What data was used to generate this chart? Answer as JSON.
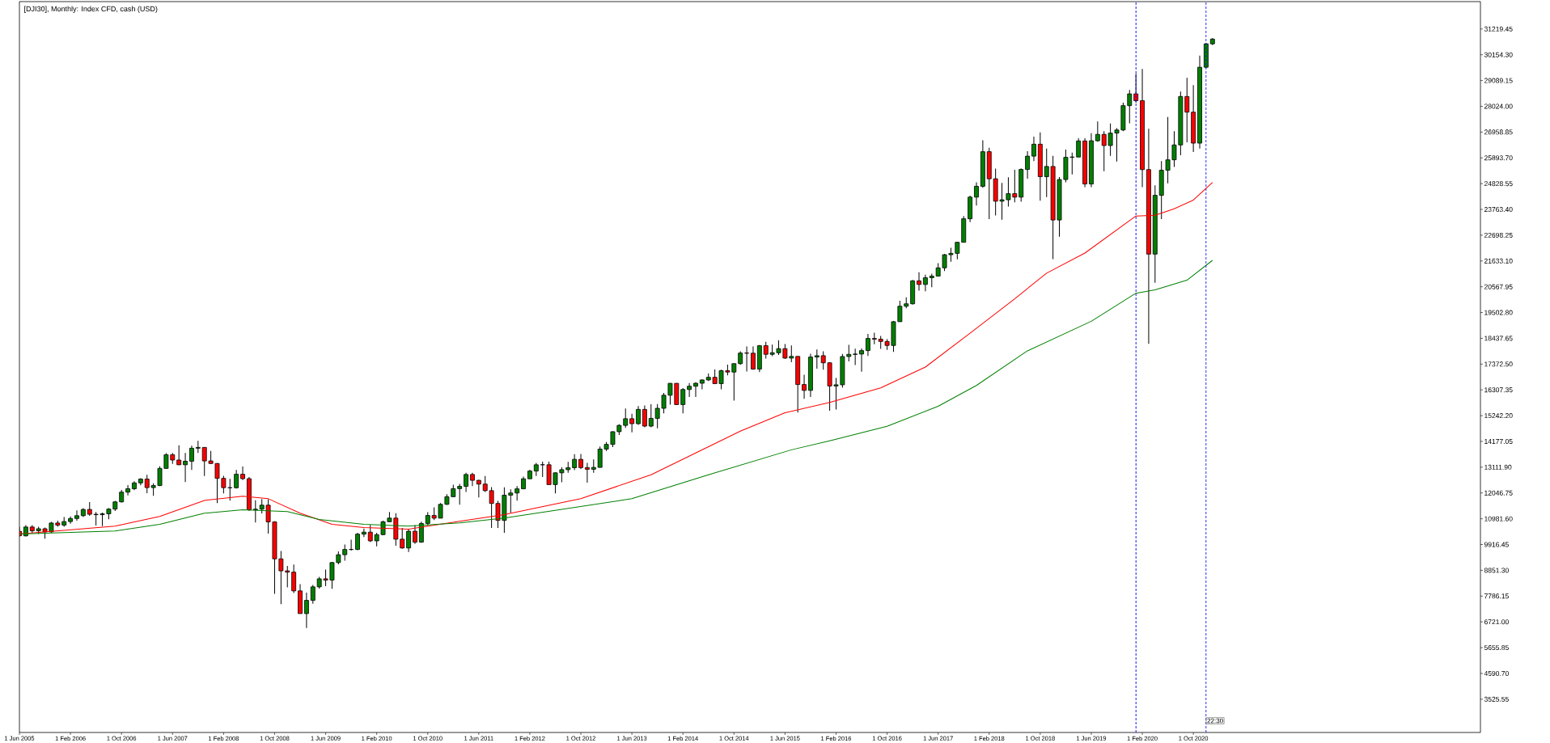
{
  "chart_data": {
    "type": "candlestick",
    "title": "[DJI30], Monthly:  Index CFD, cash (USD)",
    "x": [
      "2005-06",
      "2005-07",
      "2005-08",
      "2005-09",
      "2005-10",
      "2005-11",
      "2005-12",
      "2006-01",
      "2006-02",
      "2006-03",
      "2006-04",
      "2006-05",
      "2006-06",
      "2006-07",
      "2006-08",
      "2006-09",
      "2006-10",
      "2006-11",
      "2006-12",
      "2007-01",
      "2007-02",
      "2007-03",
      "2007-04",
      "2007-05",
      "2007-06",
      "2007-07",
      "2007-08",
      "2007-09",
      "2007-10",
      "2007-11",
      "2007-12",
      "2008-01",
      "2008-02",
      "2008-03",
      "2008-04",
      "2008-05",
      "2008-06",
      "2008-07",
      "2008-08",
      "2008-09",
      "2008-10",
      "2008-11",
      "2008-12",
      "2009-01",
      "2009-02",
      "2009-03",
      "2009-04",
      "2009-05",
      "2009-06",
      "2009-07",
      "2009-08",
      "2009-09",
      "2009-10",
      "2009-11",
      "2009-12",
      "2010-01",
      "2010-02",
      "2010-03",
      "2010-04",
      "2010-05",
      "2010-06",
      "2010-07",
      "2010-08",
      "2010-09",
      "2010-10",
      "2010-11",
      "2010-12",
      "2011-01",
      "2011-02",
      "2011-03",
      "2011-04",
      "2011-05",
      "2011-06",
      "2011-07",
      "2011-08",
      "2011-09",
      "2011-10",
      "2011-11",
      "2011-12",
      "2012-01",
      "2012-02",
      "2012-03",
      "2012-04",
      "2012-05",
      "2012-06",
      "2012-07",
      "2012-08",
      "2012-09",
      "2012-10",
      "2012-11",
      "2012-12",
      "2013-01",
      "2013-02",
      "2013-03",
      "2013-04",
      "2013-05",
      "2013-06",
      "2013-07",
      "2013-08",
      "2013-09",
      "2013-10",
      "2013-11",
      "2013-12",
      "2014-01",
      "2014-02",
      "2014-03",
      "2014-04",
      "2014-05",
      "2014-06",
      "2014-07",
      "2014-08",
      "2014-09",
      "2014-10",
      "2014-11",
      "2014-12",
      "2015-01",
      "2015-02",
      "2015-03",
      "2015-04",
      "2015-05",
      "2015-06",
      "2015-07",
      "2015-08",
      "2015-09",
      "2015-10",
      "2015-11",
      "2015-12",
      "2016-01",
      "2016-02",
      "2016-03",
      "2016-04",
      "2016-05",
      "2016-06",
      "2016-07",
      "2016-08",
      "2016-09",
      "2016-10",
      "2016-11",
      "2016-12",
      "2017-01",
      "2017-02",
      "2017-03",
      "2017-04",
      "2017-05",
      "2017-06",
      "2017-07",
      "2017-08",
      "2017-09",
      "2017-10",
      "2017-11",
      "2017-12",
      "2018-01",
      "2018-02",
      "2018-03",
      "2018-04",
      "2018-05",
      "2018-06",
      "2018-07",
      "2018-08",
      "2018-09",
      "2018-10",
      "2018-11",
      "2018-12",
      "2019-01",
      "2019-02",
      "2019-03",
      "2019-04",
      "2019-05",
      "2019-06",
      "2019-07",
      "2019-08",
      "2019-09",
      "2019-10",
      "2019-11",
      "2019-12",
      "2020-01",
      "2020-02",
      "2020-03",
      "2020-04",
      "2020-05",
      "2020-06",
      "2020-07",
      "2020-08",
      "2020-09",
      "2020-10",
      "2020-11",
      "2020-12",
      "2021-01"
    ],
    "ohlc": [
      [
        10467,
        10640,
        10250,
        10275
      ],
      [
        10275,
        10720,
        10250,
        10641
      ],
      [
        10641,
        10720,
        10400,
        10482
      ],
      [
        10482,
        10650,
        10350,
        10569
      ],
      [
        10569,
        10620,
        10160,
        10440
      ],
      [
        10440,
        10850,
        10400,
        10806
      ],
      [
        10806,
        10900,
        10650,
        10718
      ],
      [
        10718,
        11050,
        10650,
        10865
      ],
      [
        10865,
        11080,
        10780,
        10993
      ],
      [
        10993,
        11330,
        10900,
        11109
      ],
      [
        11109,
        11420,
        11050,
        11367
      ],
      [
        11367,
        11670,
        11100,
        11168
      ],
      [
        11168,
        11260,
        10700,
        11150
      ],
      [
        11150,
        11240,
        10680,
        11186
      ],
      [
        11186,
        11420,
        10960,
        11381
      ],
      [
        11381,
        11720,
        11300,
        11679
      ],
      [
        11679,
        12170,
        11650,
        12081
      ],
      [
        12081,
        12370,
        11950,
        12222
      ],
      [
        12222,
        12530,
        12160,
        12463
      ],
      [
        12463,
        12660,
        12360,
        12622
      ],
      [
        12622,
        12800,
        12040,
        12269
      ],
      [
        12269,
        12450,
        11930,
        12354
      ],
      [
        12354,
        13150,
        12330,
        13063
      ],
      [
        13063,
        13690,
        13050,
        13628
      ],
      [
        13628,
        13700,
        13250,
        13409
      ],
      [
        13409,
        14020,
        13200,
        13212
      ],
      [
        13212,
        13700,
        12500,
        13358
      ],
      [
        13358,
        14000,
        13000,
        13896
      ],
      [
        13896,
        14200,
        13700,
        13930
      ],
      [
        13930,
        13930,
        12750,
        13372
      ],
      [
        13372,
        13780,
        13250,
        13265
      ],
      [
        13265,
        13280,
        11630,
        12650
      ],
      [
        12650,
        12760,
        12030,
        12266
      ],
      [
        12266,
        12630,
        11730,
        12263
      ],
      [
        12263,
        13000,
        12230,
        12820
      ],
      [
        12820,
        13140,
        12580,
        12638
      ],
      [
        12638,
        12710,
        11300,
        11350
      ],
      [
        11350,
        11750,
        10830,
        11378
      ],
      [
        11378,
        11800,
        11200,
        11544
      ],
      [
        11544,
        11790,
        10370,
        10851
      ],
      [
        10851,
        10880,
        7880,
        9325
      ],
      [
        9325,
        9650,
        7450,
        8829
      ],
      [
        8829,
        9030,
        8150,
        8776
      ],
      [
        8776,
        9090,
        7910,
        8001
      ],
      [
        8001,
        8280,
        7060,
        7063
      ],
      [
        7063,
        7930,
        6470,
        7609
      ],
      [
        7609,
        8250,
        7470,
        8168
      ],
      [
        8168,
        8580,
        8100,
        8500
      ],
      [
        8500,
        8880,
        8200,
        8447
      ],
      [
        8447,
        9200,
        8090,
        9172
      ],
      [
        9172,
        9630,
        9100,
        9496
      ],
      [
        9496,
        9920,
        9250,
        9712
      ],
      [
        9712,
        10120,
        9670,
        9713
      ],
      [
        9713,
        10400,
        9680,
        10345
      ],
      [
        10345,
        10580,
        10230,
        10428
      ],
      [
        10428,
        10730,
        10020,
        10067
      ],
      [
        10067,
        10400,
        9840,
        10325
      ],
      [
        10325,
        10900,
        10300,
        10857
      ],
      [
        10857,
        11260,
        10850,
        11009
      ],
      [
        11009,
        11210,
        9870,
        10137
      ],
      [
        10137,
        10600,
        9740,
        9774
      ],
      [
        9774,
        10570,
        9610,
        10466
      ],
      [
        10466,
        10720,
        9940,
        10015
      ],
      [
        10015,
        10860,
        9990,
        10788
      ],
      [
        10788,
        11250,
        10700,
        11118
      ],
      [
        11118,
        11450,
        10930,
        11006
      ],
      [
        11006,
        11630,
        11000,
        11578
      ],
      [
        11578,
        12000,
        11550,
        11892
      ],
      [
        11892,
        12390,
        11880,
        12226
      ],
      [
        12226,
        12420,
        11560,
        12320
      ],
      [
        12320,
        12880,
        12090,
        12811
      ],
      [
        12811,
        12880,
        12330,
        12570
      ],
      [
        12570,
        12590,
        11860,
        12414
      ],
      [
        12414,
        12750,
        12090,
        12143
      ],
      [
        12143,
        12290,
        10600,
        11614
      ],
      [
        11614,
        11720,
        10600,
        10913
      ],
      [
        10913,
        12280,
        10400,
        11955
      ],
      [
        11955,
        12200,
        11230,
        12046
      ],
      [
        12046,
        12330,
        11730,
        12218
      ],
      [
        12218,
        12720,
        12210,
        12633
      ],
      [
        12633,
        13010,
        12630,
        12952
      ],
      [
        12952,
        13290,
        12750,
        13212
      ],
      [
        13212,
        13340,
        12710,
        13214
      ],
      [
        13214,
        13340,
        12390,
        12393
      ],
      [
        12393,
        12900,
        12030,
        12880
      ],
      [
        12880,
        13110,
        12490,
        13009
      ],
      [
        13009,
        13330,
        12880,
        13091
      ],
      [
        13091,
        13650,
        12990,
        13437
      ],
      [
        13437,
        13660,
        13030,
        13096
      ],
      [
        13096,
        13290,
        12470,
        13026
      ],
      [
        13026,
        13430,
        12880,
        13104
      ],
      [
        13104,
        13970,
        13100,
        13861
      ],
      [
        13861,
        14150,
        13780,
        14054
      ],
      [
        14054,
        14590,
        13940,
        14579
      ],
      [
        14579,
        14890,
        14440,
        14840
      ],
      [
        14840,
        15540,
        14740,
        15116
      ],
      [
        15116,
        15320,
        14550,
        14910
      ],
      [
        14910,
        15640,
        14860,
        15500
      ],
      [
        15500,
        15660,
        14760,
        14810
      ],
      [
        14810,
        15710,
        14760,
        15130
      ],
      [
        15130,
        15720,
        14720,
        15546
      ],
      [
        15546,
        16180,
        15340,
        16086
      ],
      [
        16086,
        16590,
        15700,
        16577
      ],
      [
        16577,
        16590,
        15690,
        15699
      ],
      [
        15699,
        16380,
        15340,
        16322
      ],
      [
        16322,
        16590,
        16010,
        16458
      ],
      [
        16458,
        16620,
        16010,
        16581
      ],
      [
        16581,
        16740,
        16330,
        16717
      ],
      [
        16717,
        16980,
        16670,
        16827
      ],
      [
        16827,
        17150,
        16560,
        16563
      ],
      [
        16563,
        17140,
        16330,
        17098
      ],
      [
        17098,
        17350,
        16910,
        17043
      ],
      [
        17043,
        17400,
        15860,
        17391
      ],
      [
        17391,
        17900,
        17340,
        17828
      ],
      [
        17828,
        18100,
        17070,
        17823
      ],
      [
        17823,
        18100,
        17140,
        17165
      ],
      [
        17165,
        18160,
        17040,
        18133
      ],
      [
        18133,
        18290,
        17600,
        17776
      ],
      [
        17776,
        18180,
        17700,
        17841
      ],
      [
        17841,
        18350,
        17750,
        18011
      ],
      [
        18011,
        18200,
        17580,
        17620
      ],
      [
        17620,
        18140,
        17450,
        17690
      ],
      [
        17690,
        17700,
        15370,
        16528
      ],
      [
        16528,
        16930,
        15940,
        16285
      ],
      [
        16285,
        17800,
        16010,
        17664
      ],
      [
        17664,
        17980,
        17180,
        17720
      ],
      [
        17720,
        17900,
        17140,
        17425
      ],
      [
        17425,
        17450,
        15450,
        16466
      ],
      [
        16466,
        16800,
        15500,
        16517
      ],
      [
        16517,
        17790,
        16400,
        17685
      ],
      [
        17685,
        18170,
        17480,
        17774
      ],
      [
        17774,
        18010,
        17330,
        17787
      ],
      [
        17787,
        18020,
        17060,
        17930
      ],
      [
        17930,
        18620,
        17710,
        18432
      ],
      [
        18432,
        18670,
        18190,
        18401
      ],
      [
        18401,
        18540,
        18000,
        18308
      ],
      [
        18308,
        18400,
        17960,
        18142
      ],
      [
        18142,
        19150,
        17880,
        19124
      ],
      [
        19124,
        19990,
        19120,
        19763
      ],
      [
        19763,
        20130,
        19680,
        19864
      ],
      [
        19864,
        20850,
        19830,
        20812
      ],
      [
        20812,
        21170,
        20410,
        20663
      ],
      [
        20663,
        21070,
        20380,
        20941
      ],
      [
        20941,
        21110,
        20550,
        21009
      ],
      [
        21009,
        21540,
        20990,
        21350
      ],
      [
        21350,
        21930,
        21220,
        21891
      ],
      [
        21891,
        22180,
        21600,
        21948
      ],
      [
        21948,
        22420,
        21700,
        22405
      ],
      [
        22405,
        23490,
        22400,
        23377
      ],
      [
        23377,
        24330,
        23240,
        24272
      ],
      [
        24272,
        24880,
        23920,
        24719
      ],
      [
        24719,
        26620,
        24660,
        26149
      ],
      [
        26149,
        26310,
        23360,
        25029
      ],
      [
        25029,
        25450,
        23510,
        24103
      ],
      [
        24103,
        24860,
        23340,
        24163
      ],
      [
        24163,
        25090,
        23880,
        24416
      ],
      [
        24416,
        25400,
        24060,
        24271
      ],
      [
        24271,
        25460,
        24080,
        25415
      ],
      [
        25415,
        26170,
        25030,
        25965
      ],
      [
        25965,
        26770,
        25760,
        26458
      ],
      [
        26458,
        26950,
        24120,
        25116
      ],
      [
        25116,
        26280,
        24270,
        25538
      ],
      [
        25538,
        25980,
        21710,
        23327
      ],
      [
        23327,
        25100,
        22640,
        24999
      ],
      [
        24999,
        26240,
        24880,
        25916
      ],
      [
        25916,
        26110,
        25210,
        25929
      ],
      [
        25929,
        26700,
        25920,
        26593
      ],
      [
        26593,
        26700,
        24680,
        24815
      ],
      [
        24815,
        26910,
        24680,
        26600
      ],
      [
        26600,
        27400,
        26560,
        26864
      ],
      [
        26864,
        27000,
        25340,
        26403
      ],
      [
        26403,
        27310,
        25980,
        26917
      ],
      [
        26917,
        27120,
        25740,
        27046
      ],
      [
        27046,
        28170,
        27000,
        28051
      ],
      [
        28051,
        28700,
        27320,
        28538
      ],
      [
        28538,
        29370,
        28170,
        28256
      ],
      [
        28256,
        29570,
        24680,
        25409
      ],
      [
        25409,
        27100,
        18210,
        21917
      ],
      [
        21917,
        24760,
        20730,
        24346
      ],
      [
        24346,
        25760,
        23360,
        25383
      ],
      [
        25383,
        27580,
        24840,
        25813
      ],
      [
        25813,
        27000,
        25520,
        26428
      ],
      [
        26428,
        28630,
        26000,
        28430
      ],
      [
        28430,
        29200,
        26540,
        27782
      ],
      [
        27782,
        28900,
        26140,
        26502
      ],
      [
        26502,
        30120,
        26280,
        29638
      ],
      [
        29638,
        30640,
        29600,
        30606
      ],
      [
        30606,
        30850,
        30550,
        30800
      ]
    ],
    "colors": [
      "#ff0000",
      "#008000",
      "#ff0000",
      "#008000",
      "#ff0000",
      "#008000",
      "#ff0000",
      "#008000",
      "#008000",
      "#008000",
      "#008000",
      "#ff0000",
      "#ff0000",
      "#008000",
      "#008000",
      "#008000",
      "#008000",
      "#008000",
      "#008000",
      "#008000",
      "#ff0000",
      "#008000",
      "#008000",
      "#008000",
      "#ff0000",
      "#ff0000",
      "#008000",
      "#008000",
      "#008000",
      "#ff0000",
      "#ff0000",
      "#ff0000",
      "#ff0000",
      "#ff0000",
      "#008000",
      "#ff0000",
      "#ff0000",
      "#008000",
      "#008000",
      "#ff0000",
      "#ff0000",
      "#ff0000",
      "#ff0000",
      "#ff0000",
      "#ff0000",
      "#008000",
      "#008000",
      "#008000",
      "#ff0000",
      "#008000",
      "#008000",
      "#008000",
      "#008000",
      "#008000",
      "#008000",
      "#ff0000",
      "#008000",
      "#008000",
      "#008000",
      "#ff0000",
      "#ff0000",
      "#008000",
      "#ff0000",
      "#008000",
      "#008000",
      "#ff0000",
      "#008000",
      "#008000",
      "#008000",
      "#008000",
      "#008000",
      "#ff0000",
      "#ff0000",
      "#ff0000",
      "#ff0000",
      "#ff0000",
      "#008000",
      "#008000",
      "#008000",
      "#008000",
      "#008000",
      "#008000",
      "#008000",
      "#ff0000",
      "#008000",
      "#008000",
      "#008000",
      "#008000",
      "#ff0000",
      "#ff0000",
      "#008000",
      "#008000",
      "#008000",
      "#008000",
      "#008000",
      "#008000",
      "#ff0000",
      "#008000",
      "#ff0000",
      "#008000",
      "#008000",
      "#008000",
      "#008000",
      "#ff0000",
      "#008000",
      "#008000",
      "#008000",
      "#008000",
      "#008000",
      "#ff0000",
      "#008000",
      "#ff0000",
      "#008000",
      "#008000",
      "#ff0000",
      "#ff0000",
      "#008000",
      "#ff0000",
      "#008000",
      "#008000",
      "#ff0000",
      "#008000",
      "#ff0000",
      "#ff0000",
      "#008000",
      "#008000",
      "#ff0000",
      "#ff0000",
      "#008000",
      "#008000",
      "#008000",
      "#008000",
      "#008000",
      "#008000",
      "#ff0000",
      "#ff0000",
      "#ff0000",
      "#008000",
      "#008000",
      "#008000",
      "#008000",
      "#ff0000",
      "#008000",
      "#008000",
      "#008000",
      "#008000",
      "#008000",
      "#008000",
      "#008000",
      "#008000",
      "#008000",
      "#008000",
      "#ff0000",
      "#ff0000",
      "#008000",
      "#008000",
      "#ff0000",
      "#008000",
      "#008000",
      "#008000",
      "#ff0000",
      "#008000",
      "#ff0000",
      "#008000",
      "#008000",
      "#008000",
      "#008000",
      "#ff0000",
      "#008000",
      "#008000",
      "#ff0000",
      "#008000",
      "#008000",
      "#008000",
      "#008000",
      "#ff0000",
      "#ff0000",
      "#ff0000",
      "#008000",
      "#008000",
      "#008000",
      "#008000",
      "#008000",
      "#ff0000",
      "#ff0000",
      "#008000",
      "#008000",
      "#008000"
    ],
    "series": [
      {
        "type": "line",
        "color": "#ff0000",
        "x": [
          "2005-06",
          "2006-09",
          "2007-04",
          "2007-11",
          "2008-05",
          "2008-09",
          "2009-02",
          "2009-07",
          "2009-12",
          "2010-07",
          "2011-03",
          "2011-10",
          "2012-10",
          "2013-09",
          "2014-11",
          "2015-06",
          "2016-01",
          "2016-09",
          "2017-04",
          "2017-11",
          "2018-06",
          "2018-11",
          "2019-05",
          "2020-01",
          "2020-04",
          "2020-07",
          "2020-10",
          "2021-01"
        ],
        "values": [
          10350,
          10680,
          11080,
          11740,
          11910,
          11810,
          11210,
          10750,
          10620,
          10550,
          10880,
          11150,
          11810,
          12800,
          14600,
          15360,
          15790,
          16390,
          17250,
          18650,
          20070,
          21130,
          21960,
          23490,
          23520,
          23790,
          24150,
          24880
        ]
      },
      {
        "type": "line",
        "color": "#008000",
        "x": [
          "2005-06",
          "2006-09",
          "2007-04",
          "2007-11",
          "2008-05",
          "2008-12",
          "2009-05",
          "2009-12",
          "2010-07",
          "2011-03",
          "2011-10",
          "2013-06",
          "2014-06",
          "2015-07",
          "2016-01",
          "2016-10",
          "2017-06",
          "2017-12",
          "2018-08",
          "2019-06",
          "2020-01",
          "2020-04",
          "2020-09",
          "2021-01"
        ],
        "values": [
          10350,
          10480,
          10750,
          11210,
          11350,
          11280,
          10950,
          10750,
          10680,
          10810,
          11010,
          11810,
          12800,
          13830,
          14200,
          14800,
          15630,
          16490,
          17920,
          19140,
          20300,
          20440,
          20840,
          21660
        ]
      }
    ],
    "xlim": [
      "2005-06",
      "2024-07"
    ],
    "ylim": [
      2150,
      32350
    ],
    "xticks": [
      {
        "value": "2005-06",
        "label": "1 Jun 2005"
      },
      {
        "value": "2006-02",
        "label": "1 Feb 2006"
      },
      {
        "value": "2006-10",
        "label": "1 Oct 2006"
      },
      {
        "value": "2007-06",
        "label": "1 Jun 2007"
      },
      {
        "value": "2008-02",
        "label": "1 Feb 2008"
      },
      {
        "value": "2008-10",
        "label": "1 Oct 2008"
      },
      {
        "value": "2009-06",
        "label": "1 Jun 2009"
      },
      {
        "value": "2010-02",
        "label": "1 Feb 2010"
      },
      {
        "value": "2010-10",
        "label": "1 Oct 2010"
      },
      {
        "value": "2011-06",
        "label": "1 Jun 2011"
      },
      {
        "value": "2012-02",
        "label": "1 Feb 2012"
      },
      {
        "value": "2012-10",
        "label": "1 Oct 2012"
      },
      {
        "value": "2013-06",
        "label": "1 Jun 2013"
      },
      {
        "value": "2014-02",
        "label": "1 Feb 2014"
      },
      {
        "value": "2014-10",
        "label": "1 Oct 2014"
      },
      {
        "value": "2015-06",
        "label": "1 Jun 2015"
      },
      {
        "value": "2016-02",
        "label": "1 Feb 2016"
      },
      {
        "value": "2016-10",
        "label": "1 Oct 2016"
      },
      {
        "value": "2017-06",
        "label": "1 Jun 2017"
      },
      {
        "value": "2018-02",
        "label": "1 Feb 2018"
      },
      {
        "value": "2018-10",
        "label": "1 Oct 2018"
      },
      {
        "value": "2019-06",
        "label": "1 Jun 2019"
      },
      {
        "value": "2020-02",
        "label": "1 Feb 2020"
      },
      {
        "value": "2020-10",
        "label": "1 Oct 2020"
      }
    ],
    "yticks": [
      {
        "value": 3525.55,
        "label": "3525.55"
      },
      {
        "value": 4590.7,
        "label": "4590.70"
      },
      {
        "value": 5655.85,
        "label": "5655.85"
      },
      {
        "value": 6721.0,
        "label": "6721.00"
      },
      {
        "value": 7786.15,
        "label": "7786.15"
      },
      {
        "value": 8851.3,
        "label": "8851.30"
      },
      {
        "value": 9916.45,
        "label": "9916.45"
      },
      {
        "value": 10981.6,
        "label": "10981.60"
      },
      {
        "value": 12046.75,
        "label": "12046.75"
      },
      {
        "value": 13111.9,
        "label": "13111.90"
      },
      {
        "value": 14177.05,
        "label": "14177.05"
      },
      {
        "value": 15242.2,
        "label": "15242.20"
      },
      {
        "value": 16307.35,
        "label": "16307.35"
      },
      {
        "value": 17372.5,
        "label": "17372.50"
      },
      {
        "value": 18437.65,
        "label": "18437.65"
      },
      {
        "value": 19502.8,
        "label": "19502.80"
      },
      {
        "value": 20567.95,
        "label": "20567.95"
      },
      {
        "value": 21633.1,
        "label": "21633.10"
      },
      {
        "value": 22698.25,
        "label": "22698.25"
      },
      {
        "value": 23763.4,
        "label": "23763.40"
      },
      {
        "value": 24828.55,
        "label": "24828.55"
      },
      {
        "value": 25893.7,
        "label": "25893.70"
      },
      {
        "value": 26958.85,
        "label": "26958.85"
      },
      {
        "value": 28024.0,
        "label": "28024.00"
      },
      {
        "value": 29089.15,
        "label": "29089.15"
      },
      {
        "value": 30154.3,
        "label": "30154.30"
      },
      {
        "value": 31219.45,
        "label": "31219.45"
      }
    ],
    "ref_lines": [
      {
        "axis": "x",
        "value": "2020-01",
        "color": "#0000ff",
        "line_style": "dashed"
      },
      {
        "axis": "x",
        "value": "2020-12",
        "color": "#0000ff",
        "line_style": "dashed"
      }
    ],
    "annotations": [
      {
        "text": "22:30",
        "x": "2020-12",
        "y": 2500
      }
    ],
    "marker": "none"
  }
}
